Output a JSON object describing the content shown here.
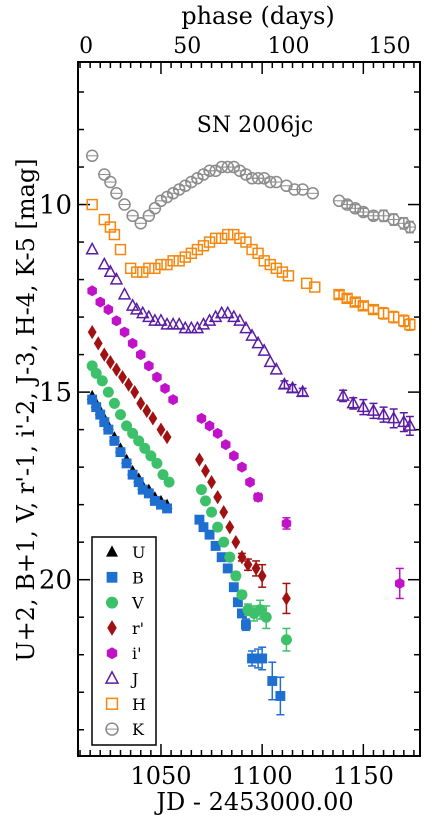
{
  "chart_data": {
    "type": "scatter",
    "title": "SN 2006jc",
    "xlabel": "JD - 2453000.00",
    "ylabel": "U+2, B+1, V, r'-1, i'-2, J-3, H-4, K-5 [mag]",
    "top_xlabel": "phase (days)",
    "xlim": [
      1009,
      1178
    ],
    "ylim": [
      24.7,
      6.2
    ],
    "y_inverted": true,
    "x_ticks": [
      "1050",
      "1100",
      "1150"
    ],
    "x_tick_values": [
      1050,
      1100,
      1150
    ],
    "top_ticks": [
      "0",
      "50",
      "100",
      "150"
    ],
    "top_tick_phases": [
      0,
      50,
      100,
      150
    ],
    "phase_zero_jd": 1013,
    "y_ticks": [
      "10",
      "15",
      "20"
    ],
    "y_tick_values": [
      10,
      15,
      20
    ],
    "legend_position": "bottom-left",
    "series": [
      {
        "name": "U",
        "marker": "triangle-filled",
        "color": "#000000",
        "points": [
          [
            1016,
            15.1
          ],
          [
            1018,
            15.3
          ],
          [
            1020,
            15.5
          ],
          [
            1022,
            15.7
          ],
          [
            1024,
            15.9
          ],
          [
            1027,
            16.2
          ],
          [
            1030,
            16.5
          ],
          [
            1033,
            16.8
          ],
          [
            1036,
            17.1
          ],
          [
            1039,
            17.3
          ],
          [
            1041,
            17.5
          ],
          [
            1044,
            17.6
          ],
          [
            1047,
            17.8
          ],
          [
            1050,
            17.9
          ],
          [
            1053,
            18.0
          ]
        ]
      },
      {
        "name": "B",
        "marker": "square-filled",
        "color": "#1f6fd1",
        "points": [
          [
            1016,
            15.2
          ],
          [
            1018,
            15.4
          ],
          [
            1020,
            15.6
          ],
          [
            1022,
            15.8
          ],
          [
            1024,
            16.0
          ],
          [
            1027,
            16.3
          ],
          [
            1030,
            16.6
          ],
          [
            1033,
            16.9
          ],
          [
            1036,
            17.2
          ],
          [
            1039,
            17.4
          ],
          [
            1041,
            17.6
          ],
          [
            1044,
            17.7
          ],
          [
            1047,
            17.9
          ],
          [
            1050,
            18.0
          ],
          [
            1053,
            18.1
          ],
          [
            1069,
            18.4
          ],
          [
            1071,
            18.6
          ],
          [
            1074,
            18.8
          ],
          [
            1077,
            19.1
          ],
          [
            1080,
            19.4
          ],
          [
            1083,
            19.7
          ],
          [
            1086,
            20.2
          ],
          [
            1088,
            20.6
          ],
          [
            1090,
            20.9
          ],
          [
            1092,
            21.2
          ],
          [
            1095,
            22.1
          ],
          [
            1098,
            22.1
          ],
          [
            1100,
            22.1
          ],
          [
            1105,
            22.7
          ],
          [
            1109,
            23.1
          ]
        ],
        "errors": [
          0,
          0,
          0,
          0,
          0,
          0,
          0,
          0,
          0,
          0,
          0,
          0,
          0,
          0,
          0,
          0,
          0,
          0,
          0,
          0,
          0,
          0.1,
          0.1,
          0.1,
          0.15,
          0.2,
          0.25,
          0.3,
          0.5,
          0.5
        ]
      },
      {
        "name": "V",
        "marker": "circle-filled",
        "color": "#3cc16a",
        "points": [
          [
            1016,
            14.3
          ],
          [
            1018,
            14.5
          ],
          [
            1021,
            14.7
          ],
          [
            1024,
            15.0
          ],
          [
            1027,
            15.3
          ],
          [
            1030,
            15.6
          ],
          [
            1033,
            15.9
          ],
          [
            1036,
            16.1
          ],
          [
            1039,
            16.3
          ],
          [
            1042,
            16.5
          ],
          [
            1045,
            16.7
          ],
          [
            1048,
            16.9
          ],
          [
            1051,
            17.2
          ],
          [
            1054,
            17.4
          ],
          [
            1070,
            17.6
          ],
          [
            1072,
            17.9
          ],
          [
            1075,
            18.2
          ],
          [
            1078,
            18.6
          ],
          [
            1081,
            19.0
          ],
          [
            1084,
            19.4
          ],
          [
            1087,
            19.9
          ],
          [
            1090,
            20.4
          ],
          [
            1093,
            20.8
          ],
          [
            1096,
            20.9
          ],
          [
            1099,
            20.8
          ],
          [
            1102,
            21.0
          ],
          [
            1112,
            21.6
          ]
        ],
        "errors": [
          0,
          0,
          0,
          0,
          0,
          0,
          0,
          0,
          0,
          0,
          0,
          0,
          0,
          0,
          0,
          0,
          0,
          0,
          0,
          0,
          0.1,
          0.1,
          0.15,
          0.2,
          0.25,
          0.3,
          0.3
        ]
      },
      {
        "name": "r'",
        "marker": "diamond-filled",
        "color": "#a01212",
        "points": [
          [
            1016,
            13.4
          ],
          [
            1019,
            13.7
          ],
          [
            1022,
            14.0
          ],
          [
            1025,
            14.2
          ],
          [
            1028,
            14.4
          ],
          [
            1031,
            14.6
          ],
          [
            1034,
            14.8
          ],
          [
            1037,
            15.0
          ],
          [
            1040,
            15.3
          ],
          [
            1043,
            15.5
          ],
          [
            1046,
            15.7
          ],
          [
            1050,
            16.0
          ],
          [
            1053,
            16.2
          ],
          [
            1069,
            16.8
          ],
          [
            1072,
            17.1
          ],
          [
            1075,
            17.4
          ],
          [
            1078,
            17.8
          ],
          [
            1081,
            18.2
          ],
          [
            1084,
            18.6
          ],
          [
            1087,
            19.0
          ],
          [
            1090,
            19.4
          ],
          [
            1093,
            19.6
          ],
          [
            1097,
            19.7
          ],
          [
            1100,
            19.9
          ],
          [
            1112,
            20.5
          ]
        ],
        "errors": [
          0,
          0,
          0,
          0,
          0,
          0,
          0,
          0,
          0,
          0,
          0,
          0,
          0,
          0,
          0,
          0,
          0,
          0,
          0,
          0,
          0.1,
          0.15,
          0.2,
          0.3,
          0.4
        ]
      },
      {
        "name": "i'",
        "marker": "hexagon-filled",
        "color": "#c012c8",
        "points": [
          [
            1016,
            12.3
          ],
          [
            1020,
            12.6
          ],
          [
            1024,
            12.8
          ],
          [
            1028,
            13.1
          ],
          [
            1032,
            13.4
          ],
          [
            1036,
            13.7
          ],
          [
            1040,
            14.0
          ],
          [
            1044,
            14.3
          ],
          [
            1048,
            14.6
          ],
          [
            1052,
            14.9
          ],
          [
            1056,
            15.2
          ],
          [
            1070,
            15.7
          ],
          [
            1074,
            15.9
          ],
          [
            1078,
            16.1
          ],
          [
            1082,
            16.4
          ],
          [
            1086,
            16.7
          ],
          [
            1090,
            17.0
          ],
          [
            1094,
            17.4
          ],
          [
            1098,
            17.8
          ],
          [
            1112,
            18.5
          ],
          [
            1168,
            20.1
          ]
        ],
        "errors": [
          0,
          0,
          0,
          0,
          0,
          0,
          0,
          0,
          0,
          0,
          0,
          0,
          0,
          0,
          0,
          0,
          0,
          0,
          0.1,
          0.15,
          0.4
        ]
      },
      {
        "name": "J",
        "marker": "triangle-open",
        "color": "#5a1ca3",
        "points": [
          [
            1016,
            11.2
          ],
          [
            1022,
            11.6
          ],
          [
            1025,
            11.8
          ],
          [
            1028,
            12.0
          ],
          [
            1032,
            12.4
          ],
          [
            1036,
            12.7
          ],
          [
            1038,
            12.8
          ],
          [
            1041,
            12.9
          ],
          [
            1044,
            13.0
          ],
          [
            1047,
            13.1
          ],
          [
            1050,
            13.1
          ],
          [
            1053,
            13.2
          ],
          [
            1056,
            13.2
          ],
          [
            1059,
            13.2
          ],
          [
            1062,
            13.3
          ],
          [
            1065,
            13.3
          ],
          [
            1068,
            13.3
          ],
          [
            1071,
            13.2
          ],
          [
            1074,
            13.1
          ],
          [
            1077,
            13.0
          ],
          [
            1080,
            12.9
          ],
          [
            1083,
            12.9
          ],
          [
            1086,
            13.0
          ],
          [
            1089,
            13.1
          ],
          [
            1092,
            13.3
          ],
          [
            1095,
            13.5
          ],
          [
            1098,
            13.7
          ],
          [
            1101,
            13.9
          ],
          [
            1104,
            14.2
          ],
          [
            1107,
            14.4
          ],
          [
            1111,
            14.8
          ],
          [
            1115,
            14.9
          ],
          [
            1120,
            15.0
          ],
          [
            1140,
            15.1
          ],
          [
            1145,
            15.3
          ],
          [
            1150,
            15.4
          ],
          [
            1155,
            15.5
          ],
          [
            1160,
            15.6
          ],
          [
            1165,
            15.7
          ],
          [
            1170,
            15.8
          ],
          [
            1173,
            15.9
          ]
        ],
        "errors": [
          0,
          0,
          0,
          0,
          0,
          0,
          0,
          0,
          0,
          0,
          0,
          0,
          0,
          0,
          0,
          0,
          0,
          0,
          0,
          0,
          0,
          0,
          0,
          0,
          0,
          0,
          0,
          0,
          0,
          0,
          0.1,
          0.1,
          0.1,
          0.15,
          0.15,
          0.2,
          0.2,
          0.2,
          0.25,
          0.25,
          0.25
        ]
      },
      {
        "name": "H",
        "marker": "square-open",
        "color": "#f4870e",
        "points": [
          [
            1016,
            10.0
          ],
          [
            1022,
            10.4
          ],
          [
            1025,
            10.6
          ],
          [
            1027,
            10.8
          ],
          [
            1030,
            11.2
          ],
          [
            1035,
            11.7
          ],
          [
            1038,
            11.8
          ],
          [
            1041,
            11.8
          ],
          [
            1044,
            11.7
          ],
          [
            1047,
            11.7
          ],
          [
            1050,
            11.6
          ],
          [
            1053,
            11.6
          ],
          [
            1056,
            11.5
          ],
          [
            1059,
            11.5
          ],
          [
            1062,
            11.4
          ],
          [
            1065,
            11.3
          ],
          [
            1068,
            11.2
          ],
          [
            1071,
            11.1
          ],
          [
            1074,
            11.0
          ],
          [
            1077,
            10.9
          ],
          [
            1080,
            10.9
          ],
          [
            1083,
            10.8
          ],
          [
            1086,
            10.8
          ],
          [
            1089,
            10.9
          ],
          [
            1092,
            11.0
          ],
          [
            1095,
            11.2
          ],
          [
            1098,
            11.3
          ],
          [
            1101,
            11.5
          ],
          [
            1104,
            11.6
          ],
          [
            1107,
            11.7
          ],
          [
            1110,
            11.8
          ],
          [
            1113,
            11.9
          ],
          [
            1122,
            12.1
          ],
          [
            1126,
            12.2
          ],
          [
            1138,
            12.4
          ],
          [
            1142,
            12.5
          ],
          [
            1146,
            12.6
          ],
          [
            1150,
            12.7
          ],
          [
            1155,
            12.8
          ],
          [
            1160,
            12.9
          ],
          [
            1165,
            13.0
          ],
          [
            1170,
            13.1
          ],
          [
            1173,
            13.2
          ]
        ],
        "errors": [
          0,
          0,
          0,
          0,
          0,
          0,
          0,
          0,
          0,
          0,
          0,
          0,
          0,
          0,
          0,
          0,
          0,
          0,
          0,
          0,
          0,
          0,
          0,
          0,
          0,
          0,
          0,
          0,
          0,
          0,
          0,
          0,
          0,
          0,
          0.1,
          0.1,
          0.1,
          0.1,
          0.1,
          0.15,
          0.15,
          0.15,
          0.15
        ]
      },
      {
        "name": "K",
        "marker": "circle-open",
        "color": "#8c8c8c",
        "points": [
          [
            1016,
            8.7
          ],
          [
            1022,
            9.2
          ],
          [
            1025,
            9.4
          ],
          [
            1028,
            9.7
          ],
          [
            1032,
            10.0
          ],
          [
            1036,
            10.3
          ],
          [
            1040,
            10.5
          ],
          [
            1044,
            10.3
          ],
          [
            1047,
            10.1
          ],
          [
            1050,
            9.9
          ],
          [
            1053,
            9.8
          ],
          [
            1056,
            9.7
          ],
          [
            1059,
            9.6
          ],
          [
            1062,
            9.5
          ],
          [
            1065,
            9.4
          ],
          [
            1068,
            9.3
          ],
          [
            1071,
            9.2
          ],
          [
            1074,
            9.1
          ],
          [
            1077,
            9.1
          ],
          [
            1080,
            9.0
          ],
          [
            1083,
            9.0
          ],
          [
            1086,
            9.0
          ],
          [
            1089,
            9.1
          ],
          [
            1092,
            9.2
          ],
          [
            1095,
            9.3
          ],
          [
            1098,
            9.3
          ],
          [
            1101,
            9.3
          ],
          [
            1104,
            9.4
          ],
          [
            1107,
            9.4
          ],
          [
            1112,
            9.5
          ],
          [
            1116,
            9.6
          ],
          [
            1120,
            9.6
          ],
          [
            1125,
            9.7
          ],
          [
            1138,
            9.9
          ],
          [
            1142,
            10.0
          ],
          [
            1146,
            10.1
          ],
          [
            1150,
            10.2
          ],
          [
            1155,
            10.3
          ],
          [
            1160,
            10.3
          ],
          [
            1165,
            10.4
          ],
          [
            1170,
            10.5
          ],
          [
            1173,
            10.6
          ]
        ],
        "errors": [
          0,
          0,
          0,
          0,
          0,
          0,
          0,
          0,
          0,
          0,
          0,
          0,
          0,
          0,
          0,
          0,
          0,
          0,
          0,
          0,
          0,
          0,
          0,
          0,
          0,
          0,
          0,
          0,
          0,
          0,
          0,
          0,
          0,
          0,
          0.1,
          0.1,
          0.1,
          0.1,
          0.15,
          0.15,
          0.15,
          0.15
        ]
      }
    ]
  }
}
